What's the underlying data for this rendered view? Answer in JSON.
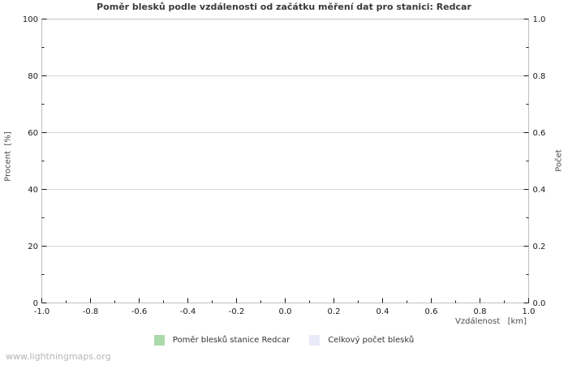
{
  "title": "Poměr blesků podle vzdálenosti od začátku měření dat pro stanici: Redcar",
  "footer": "www.lightningmaps.org",
  "chart_data": {
    "type": "bar",
    "title": "Poměr blesků podle vzdálenosti od začátku měření dat pro stanici: Redcar",
    "xlabel": "Vzdálenost   [km]",
    "ylabel_left": "Procent  [%]",
    "ylabel_right": "Počet",
    "xlim": [
      -1.0,
      1.0
    ],
    "ylim_left": [
      0,
      100
    ],
    "ylim_right": [
      0.0,
      1.0
    ],
    "x_tick_values": [
      -1.0,
      -0.8,
      -0.6,
      -0.4,
      -0.2,
      0.0,
      0.2,
      0.4,
      0.6,
      0.8,
      1.0
    ],
    "x_tick_labels": [
      "-1.0",
      "-0.8",
      "-0.6",
      "-0.4",
      "-0.2",
      "0.0",
      "0.2",
      "0.4",
      "0.6",
      "0.8",
      "1.0"
    ],
    "y_left_tick_values": [
      0,
      20,
      40,
      60,
      80,
      100
    ],
    "y_left_tick_labels": [
      "0",
      "20",
      "40",
      "60",
      "80",
      "100"
    ],
    "y_right_tick_values": [
      0.0,
      0.2,
      0.4,
      0.6,
      0.8,
      1.0
    ],
    "y_right_tick_labels": [
      "0.0",
      "0.2",
      "0.4",
      "0.6",
      "0.8",
      "1.0"
    ],
    "minor_ticks_between_majors": 1,
    "grid": "horizontal-major",
    "legend_position": "bottom-center",
    "series": [
      {
        "name": "Poměr blesků stanice Redcar",
        "color": "#abd9ab",
        "axis": "left",
        "values": []
      },
      {
        "name": "Celkový počet blesků",
        "color": "#e9e9f7",
        "axis": "right",
        "values": []
      }
    ],
    "colors": {
      "background": "#ffffff",
      "plot_border": "#c0c0c0",
      "grid_line": "#d6d6d6",
      "tick_mark": "#1a1a1a",
      "tick_label": "#1a1a1a",
      "axis_title": "#4d4d4d",
      "chart_title": "#3a3a3a",
      "legend_text": "#333333",
      "footer_text": "#b5b5b5"
    }
  }
}
